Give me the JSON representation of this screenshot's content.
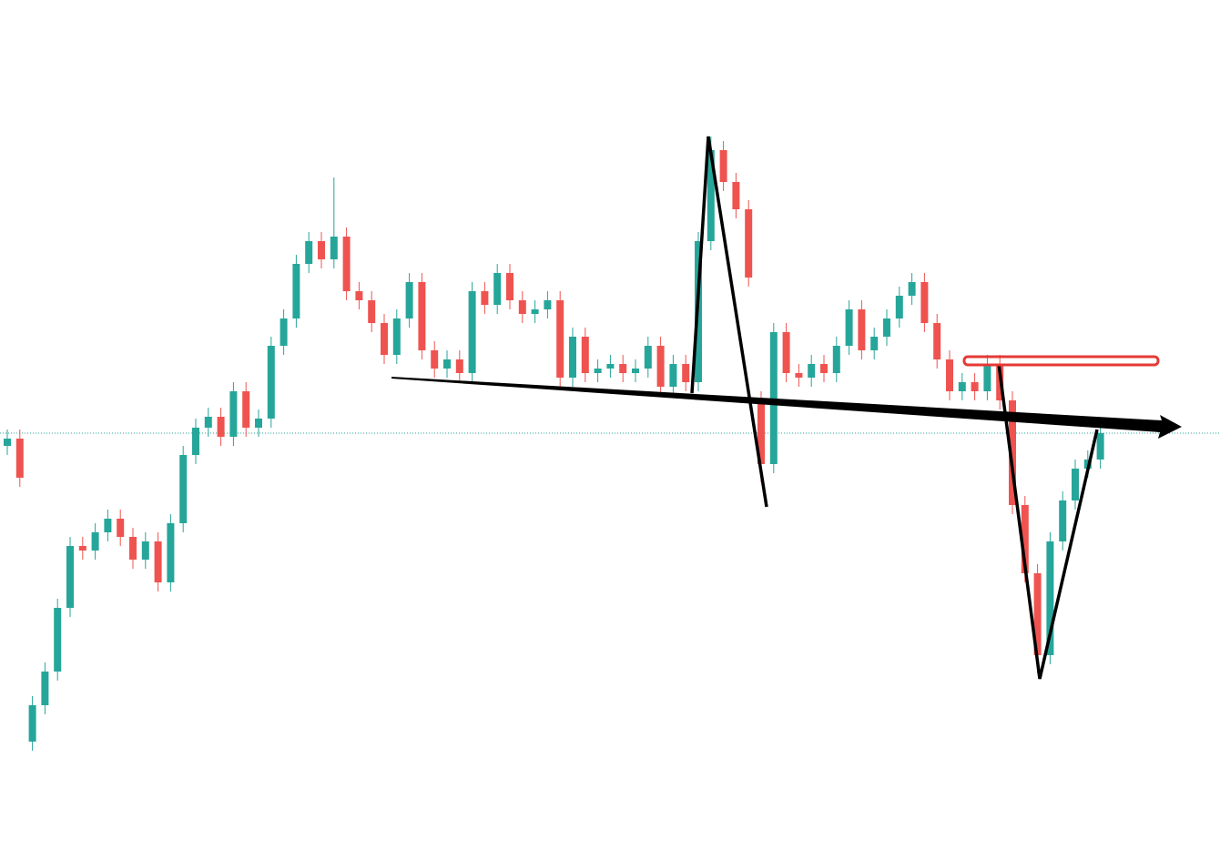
{
  "chart_data": {
    "type": "candlestick",
    "up_color": "#26a69a",
    "down_color": "#ef5350",
    "ylim": [
      0,
      944
    ],
    "open": [
      454,
      462,
      129,
      169,
      206,
      276,
      344,
      339,
      359,
      374,
      354,
      329,
      349,
      304,
      369,
      444,
      474,
      486,
      464,
      514,
      474,
      484,
      564,
      594,
      654,
      679,
      659,
      684,
      624,
      614,
      589,
      554,
      594,
      634,
      559,
      539,
      549,
      534,
      624,
      609,
      644,
      614,
      599,
      604,
      614,
      529,
      574,
      534,
      539,
      544,
      534,
      539,
      564,
      519,
      544,
      524,
      679,
      779,
      744,
      714,
      504,
      434,
      579,
      534,
      529,
      544,
      534,
      564,
      604,
      559,
      574,
      594,
      619,
      634,
      589,
      549,
      514,
      524,
      514,
      544,
      504,
      389,
      314,
      224,
      349,
      394,
      429,
      439
    ],
    "high": [
      472,
      472,
      179,
      216,
      286,
      354,
      354,
      369,
      384,
      384,
      364,
      359,
      359,
      379,
      454,
      484,
      496,
      496,
      524,
      524,
      494,
      574,
      604,
      664,
      689,
      689,
      749,
      694,
      634,
      624,
      599,
      604,
      644,
      644,
      569,
      559,
      559,
      634,
      634,
      654,
      654,
      624,
      614,
      624,
      624,
      584,
      584,
      549,
      554,
      554,
      549,
      574,
      574,
      554,
      554,
      689,
      794,
      789,
      754,
      724,
      514,
      589,
      589,
      544,
      554,
      554,
      574,
      614,
      614,
      584,
      604,
      629,
      644,
      644,
      599,
      559,
      534,
      534,
      554,
      554,
      514,
      399,
      324,
      359,
      404,
      439,
      449,
      478
    ],
    "low": [
      444,
      409,
      119,
      159,
      196,
      266,
      329,
      329,
      349,
      344,
      319,
      319,
      294,
      294,
      359,
      434,
      464,
      454,
      454,
      464,
      464,
      474,
      554,
      584,
      644,
      649,
      649,
      614,
      604,
      579,
      544,
      544,
      584,
      549,
      529,
      529,
      524,
      524,
      599,
      599,
      604,
      589,
      589,
      594,
      519,
      519,
      524,
      524,
      529,
      524,
      524,
      529,
      509,
      509,
      514,
      514,
      669,
      734,
      704,
      629,
      414,
      424,
      524,
      519,
      519,
      524,
      524,
      554,
      549,
      549,
      564,
      584,
      609,
      579,
      539,
      504,
      504,
      504,
      504,
      494,
      379,
      304,
      204,
      214,
      339,
      384,
      419,
      429
    ],
    "close": [
      462,
      419,
      169,
      206,
      276,
      344,
      339,
      359,
      374,
      354,
      329,
      349,
      304,
      369,
      444,
      474,
      486,
      464,
      514,
      474,
      484,
      564,
      594,
      654,
      679,
      659,
      684,
      624,
      614,
      589,
      554,
      594,
      634,
      559,
      539,
      549,
      534,
      624,
      609,
      644,
      614,
      599,
      604,
      614,
      529,
      574,
      534,
      539,
      544,
      534,
      539,
      564,
      519,
      544,
      524,
      679,
      779,
      744,
      714,
      639,
      434,
      579,
      534,
      529,
      544,
      534,
      564,
      604,
      559,
      574,
      594,
      619,
      634,
      589,
      549,
      514,
      524,
      514,
      544,
      504,
      389,
      314,
      224,
      349,
      394,
      429,
      439,
      468
    ]
  }
}
